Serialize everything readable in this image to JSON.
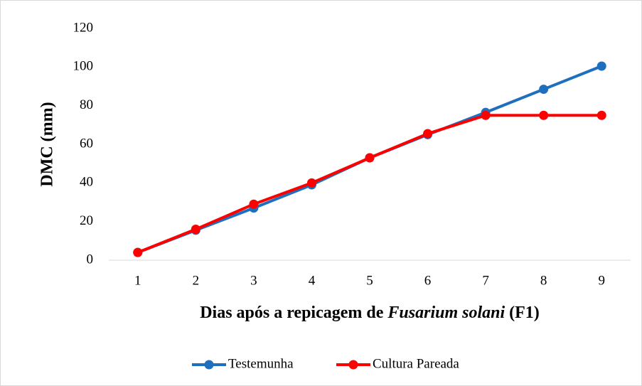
{
  "chart_data": {
    "type": "line",
    "y_label": "DMC (mm)",
    "x_label": [
      {
        "text": "Dias após a repicagem de ",
        "italic": false
      },
      {
        "text": "Fusarium solani",
        "italic": true
      },
      {
        "text": " (F1)",
        "italic": false
      }
    ],
    "categories": [
      "1",
      "2",
      "3",
      "4",
      "5",
      "6",
      "7",
      "8",
      "9"
    ],
    "series": [
      {
        "name": "Testemunha",
        "color": "#1f6fbf",
        "values": [
          4,
          15.5,
          27,
          39,
          53,
          65,
          76.5,
          88.5,
          100.5
        ]
      },
      {
        "name": "Cultura Pareada",
        "color": "#ff0000",
        "values": [
          4,
          16,
          29,
          40,
          53,
          65.5,
          75,
          75,
          75
        ]
      }
    ],
    "ylim": [
      0,
      120
    ],
    "yticks": [
      0,
      20,
      40,
      60,
      80,
      100,
      120
    ],
    "grid": false,
    "legend": "bottom"
  }
}
